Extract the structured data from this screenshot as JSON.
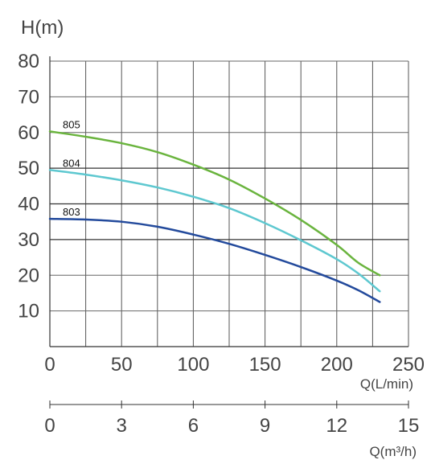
{
  "chart_data": {
    "type": "line",
    "ylabel": "H(m)",
    "xlabel": "Q(L/min)",
    "x2label": "Q(m³/h)",
    "xlim": [
      0,
      250
    ],
    "ylim": [
      0,
      80
    ],
    "x_ticks": [
      "0",
      "50",
      "100",
      "150",
      "200",
      "250"
    ],
    "x2_ticks": [
      "0",
      "3",
      "6",
      "9",
      "12",
      "15"
    ],
    "y_ticks": [
      "10",
      "20",
      "30",
      "40",
      "50",
      "60",
      "70",
      "80"
    ],
    "x_tick_values": [
      0,
      50,
      100,
      150,
      200,
      250
    ],
    "y_tick_values": [
      10,
      20,
      30,
      40,
      50,
      60,
      70,
      80
    ],
    "grid": true,
    "series": [
      {
        "name": "805",
        "color": "#6ab43e",
        "points": [
          [
            0,
            60.3
          ],
          [
            25,
            58.8
          ],
          [
            50,
            57
          ],
          [
            75,
            54.5
          ],
          [
            100,
            51
          ],
          [
            125,
            46.8
          ],
          [
            150,
            41.5
          ],
          [
            175,
            35.5
          ],
          [
            200,
            28.5
          ],
          [
            215,
            23.5
          ],
          [
            230,
            20
          ]
        ]
      },
      {
        "name": "804",
        "color": "#5ec8d0",
        "points": [
          [
            0,
            49.5
          ],
          [
            25,
            48.2
          ],
          [
            50,
            46.6
          ],
          [
            75,
            44.6
          ],
          [
            100,
            42
          ],
          [
            125,
            38.8
          ],
          [
            150,
            34.6
          ],
          [
            175,
            29.8
          ],
          [
            200,
            24.5
          ],
          [
            215,
            20.5
          ],
          [
            230,
            15.5
          ]
        ]
      },
      {
        "name": "803",
        "color": "#234a9c",
        "points": [
          [
            0,
            35.8
          ],
          [
            25,
            35.6
          ],
          [
            50,
            35
          ],
          [
            75,
            33.6
          ],
          [
            100,
            31.4
          ],
          [
            125,
            28.8
          ],
          [
            150,
            25.7
          ],
          [
            175,
            22.3
          ],
          [
            200,
            18.5
          ],
          [
            215,
            15.8
          ],
          [
            230,
            12.5
          ]
        ]
      }
    ]
  }
}
